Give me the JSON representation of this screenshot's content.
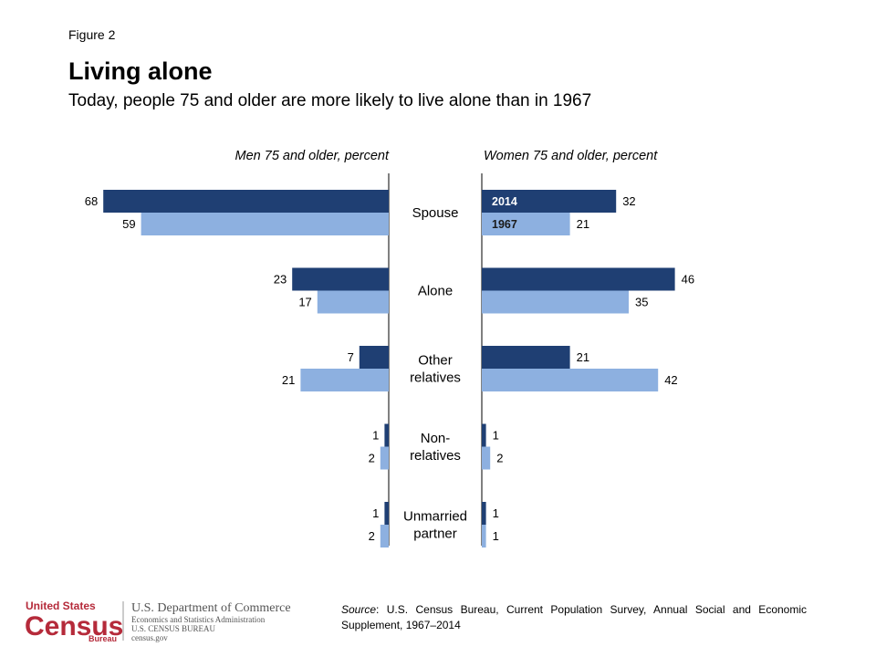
{
  "figure_label": "Figure 2",
  "title": "Living alone",
  "subtitle": "Today, people 75 and older are more likely to live alone than in 1967",
  "colors": {
    "series_2014": "#1f3f73",
    "series_1967": "#8db0e0",
    "census_red": "#b52a3a"
  },
  "chart_data": {
    "type": "bar",
    "orientation": "horizontal",
    "layout": "back-to-back",
    "categories": [
      "Spouse",
      "Alone",
      "Other relatives",
      "Non-relatives",
      "Unmarried partner"
    ],
    "category_labels": [
      [
        "Spouse"
      ],
      [
        "Alone"
      ],
      [
        "Other",
        "relatives"
      ],
      [
        "Non-",
        "relatives"
      ],
      [
        "Unmarried",
        "partner"
      ]
    ],
    "panels": [
      {
        "title": "Men 75 and older, percent",
        "series": [
          {
            "name": "2014",
            "values": [
              68,
              23,
              7,
              1,
              1
            ]
          },
          {
            "name": "1967",
            "values": [
              59,
              17,
              21,
              2,
              2
            ]
          }
        ]
      },
      {
        "title": "Women 75 and older, percent",
        "series": [
          {
            "name": "2014",
            "values": [
              32,
              46,
              21,
              1,
              1
            ]
          },
          {
            "name": "1967",
            "values": [
              21,
              35,
              42,
              2,
              1
            ]
          }
        ]
      }
    ],
    "legend": {
      "placement": "inside first women bars",
      "entries": [
        "2014",
        "1967"
      ]
    }
  },
  "source": {
    "label": "Source",
    "text": ": U.S. Census Bureau, Current Population Survey, Annual Social and Economic Supplement, 1967–2014"
  },
  "logo": {
    "top_line": "United States",
    "census": "Census",
    "bureau": "Bureau",
    "dept": "U.S. Department of Commerce",
    "line2": "Economics and Statistics Administration",
    "line3": "U.S. CENSUS BUREAU",
    "line4": "census.gov"
  }
}
